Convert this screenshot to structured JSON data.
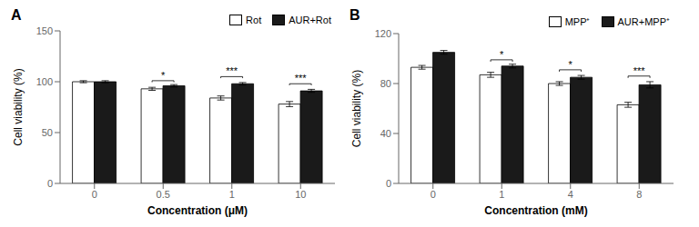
{
  "chart_data": [
    {
      "type": "bar",
      "title": "A",
      "xlabel": "Concentration (μM)",
      "ylabel": "Cell viability (%)",
      "categories": [
        "0",
        "0.5",
        "1",
        "10"
      ],
      "series": [
        {
          "name": "Rot",
          "color": "#ffffff",
          "values": [
            100,
            93,
            84,
            78
          ],
          "errors": [
            1.0,
            1.5,
            2.0,
            2.5
          ]
        },
        {
          "name": "AUR+Rot",
          "color": "#1a1a1a",
          "values": [
            100,
            96,
            98,
            91
          ],
          "errors": [
            1.0,
            1.2,
            1.2,
            1.5
          ]
        }
      ],
      "ylim": [
        0,
        150
      ],
      "yticks": [
        0,
        50,
        100,
        150
      ],
      "legend": "upper right",
      "grid": false,
      "annotations": [
        {
          "category": "0.5",
          "y": 101,
          "label": "*"
        },
        {
          "category": "1",
          "y": 105,
          "label": "***"
        },
        {
          "category": "10",
          "y": 98,
          "label": "***"
        }
      ]
    },
    {
      "type": "bar",
      "title": "B",
      "xlabel": "Concentration (mM)",
      "ylabel": "Cell viability (%)",
      "categories": [
        "0",
        "1",
        "4",
        "8"
      ],
      "series": [
        {
          "name": "MPP⁺",
          "color": "#ffffff",
          "values": [
            93,
            87,
            80,
            63
          ],
          "errors": [
            1.5,
            2.0,
            1.5,
            2.0
          ]
        },
        {
          "name": "AUR+MPP⁺",
          "color": "#1a1a1a",
          "values": [
            105,
            94,
            85,
            79
          ],
          "errors": [
            1.5,
            1.5,
            1.5,
            2.5
          ]
        }
      ],
      "ylim": [
        0,
        120
      ],
      "yticks": [
        0,
        40,
        80,
        120
      ],
      "legend": "upper right",
      "grid": false,
      "annotations": [
        {
          "category": "1",
          "y": 99,
          "label": "*"
        },
        {
          "category": "4",
          "y": 91,
          "label": "*"
        },
        {
          "category": "8",
          "y": 86,
          "label": "***"
        }
      ]
    }
  ]
}
